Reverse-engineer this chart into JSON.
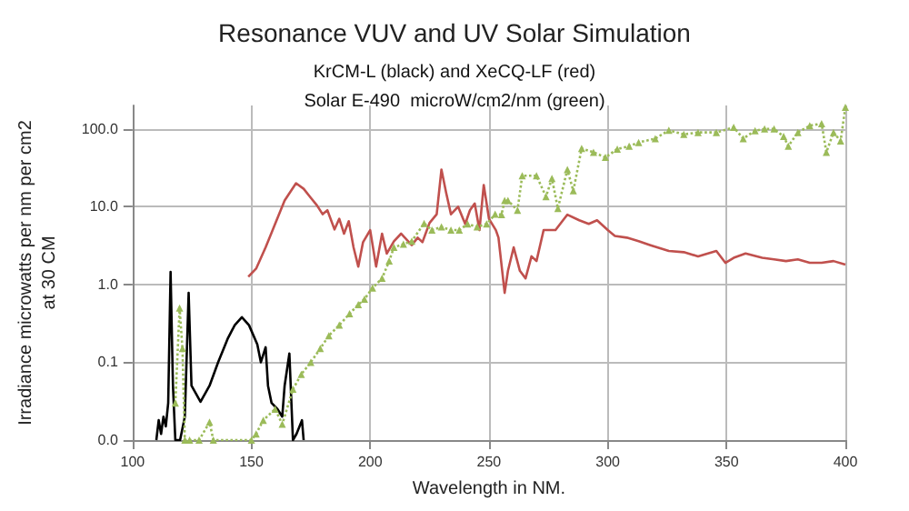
{
  "chart_data": {
    "type": "line",
    "title": "Resonance VUV and UV Solar Simulation",
    "subtitle": "KrCM-L (black) and XeCQ-LF (red)\nSolar E-490  microW/cm2/nm (green)",
    "xlabel": "Wavelength in NM.",
    "ylabel": "Irradiance microwatts per nm per cm2\nat 30 CM",
    "log": "y",
    "grid": true,
    "xlim": [
      100,
      400
    ],
    "xticks": [
      100,
      150,
      200,
      250,
      300,
      350,
      400
    ],
    "ylim": [
      0.01,
      200
    ],
    "yticks": [
      {
        "value": 0.01,
        "label": "0.0"
      },
      {
        "value": 0.1,
        "label": "0.1"
      },
      {
        "value": 1,
        "label": "1.0"
      },
      {
        "value": 10,
        "label": "10.0"
      },
      {
        "value": 100,
        "label": "100.0"
      }
    ],
    "series": [
      {
        "color": "#000000",
        "marker": "none",
        "line_style": "solid",
        "x": [
          110,
          111,
          112,
          113,
          114,
          115,
          116,
          117,
          118,
          120,
          122,
          123.6,
          124.8,
          128.6,
          132.4,
          136,
          140,
          143,
          146,
          149,
          152.5,
          154,
          156,
          157,
          158.5,
          161,
          163,
          164,
          166,
          167.5,
          169,
          171.3,
          172
        ],
        "values": [
          0.01,
          0.018,
          0.012,
          0.02,
          0.015,
          0.03,
          1.45,
          0.05,
          0.01,
          0.01,
          0.02,
          0.78,
          0.05,
          0.031,
          0.05,
          0.1,
          0.2,
          0.3,
          0.38,
          0.3,
          0.17,
          0.1,
          0.156,
          0.05,
          0.03,
          0.025,
          0.02,
          0.05,
          0.13,
          0.01,
          0.012,
          0.018,
          0.01
        ]
      },
      {
        "color": "#c0504d",
        "marker": "none",
        "line_style": "solid",
        "x": [
          148.7,
          152,
          156,
          160,
          164,
          168.8,
          172,
          175,
          177.6,
          180,
          182,
          185,
          187,
          189,
          191,
          193,
          195,
          197,
          200,
          202.5,
          205,
          207,
          210,
          213,
          217.5,
          220,
          222,
          225,
          228,
          230,
          232,
          234,
          237,
          240,
          242,
          244,
          246,
          247.8,
          250,
          252.9,
          254,
          256.6,
          258,
          260.4,
          263,
          265.4,
          267.9,
          270,
          273,
          278,
          283,
          288,
          292,
          295.5,
          300,
          303,
          308,
          313,
          318,
          325.7,
          332,
          338,
          345.7,
          349.5,
          353,
          358,
          365,
          370,
          375,
          380,
          385,
          390,
          395,
          400
        ],
        "values": [
          1.26,
          1.6,
          3,
          6,
          12,
          20,
          17,
          13,
          10.4,
          8,
          9,
          5.1,
          7,
          4.5,
          6.5,
          3,
          1.7,
          3.5,
          5,
          1.7,
          4.5,
          2.5,
          3.6,
          4.5,
          3.2,
          4,
          3.5,
          6.2,
          8,
          30,
          15,
          8,
          10,
          6,
          9,
          11,
          5,
          19,
          7,
          5,
          4,
          0.78,
          1.5,
          3,
          1.5,
          1.2,
          2.3,
          2,
          5,
          5,
          7.9,
          6.7,
          6,
          6.7,
          5,
          4.2,
          4,
          3.6,
          3.2,
          2.7,
          2.6,
          2.3,
          2.7,
          1.9,
          2.2,
          2.5,
          2.2,
          2.1,
          2,
          2.1,
          1.9,
          1.9,
          2,
          1.8
        ]
      },
      {
        "color": "#9bbb59",
        "marker": "triangle",
        "line_style": "dotted",
        "x": [
          118,
          119.8,
          121,
          122,
          124,
          128,
          132.4,
          134,
          150,
          152,
          155,
          160,
          163,
          167.5,
          171,
          175,
          179,
          182.6,
          187,
          191.3,
          195,
          197.6,
          201,
          205,
          208,
          210,
          214,
          217.5,
          222.7,
          226,
          230,
          234,
          237.5,
          241,
          245,
          249,
          252.6,
          255.3,
          256.6,
          258,
          262,
          264,
          270,
          274,
          276.5,
          279,
          283,
          285.5,
          289,
          294,
          299,
          304,
          309,
          313,
          320,
          325.7,
          332,
          338,
          345.7,
          353,
          357,
          362,
          366,
          370,
          374,
          376,
          380,
          385,
          390,
          392,
          395,
          398,
          400
        ],
        "values": [
          0.03,
          0.5,
          0.15,
          0.01,
          0.01,
          0.01,
          0.017,
          0.01,
          0.01,
          0.012,
          0.018,
          0.025,
          0.016,
          0.045,
          0.07,
          0.1,
          0.15,
          0.22,
          0.3,
          0.42,
          0.55,
          0.65,
          0.9,
          1.2,
          2,
          3,
          3.3,
          3.6,
          6.1,
          5,
          5.5,
          5,
          5,
          6,
          5.5,
          6,
          8,
          7.9,
          12,
          12,
          9,
          25,
          25,
          13.5,
          23,
          9.5,
          30,
          16,
          56,
          50,
          43,
          55,
          60,
          67,
          75,
          96,
          85,
          90,
          90,
          105,
          75,
          95,
          100,
          100,
          80,
          60,
          90,
          110,
          117,
          50,
          90,
          70,
          190
        ]
      }
    ]
  }
}
